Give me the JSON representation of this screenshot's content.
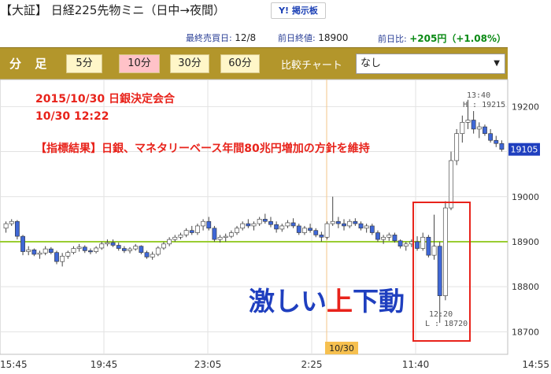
{
  "header": {
    "title": "【大証】 日経225先物ミニ（日中→夜間）",
    "board_button": "Y! 掲示板",
    "last_trade_label": "最終売買日:",
    "last_trade_value": "12/8",
    "prev_close_label": "前日終値:",
    "prev_close_value": "18900",
    "change_label": "前日比:",
    "change_value": "+205円（+1.08%）"
  },
  "toolbar": {
    "label": "分 足",
    "timeframes": [
      "5分",
      "10分",
      "30分",
      "60分"
    ],
    "active_timeframe": "10分",
    "compare_label": "比較チャート",
    "compare_value": "なし"
  },
  "chart_data": {
    "type": "candlestick",
    "x_ticks": [
      "15:45",
      "19:45",
      "23:05",
      "2:25",
      "11:40",
      "14:55"
    ],
    "y_ticks": [
      18700,
      18800,
      18900,
      19000,
      19100,
      19200
    ],
    "ylim": [
      18650,
      19260
    ],
    "reference_line": 18900,
    "date_marker": "10/30",
    "current_price": "19105",
    "colors": {
      "up": "#ffffff",
      "down": "#3f67d6",
      "reference": "#9acd32",
      "annotation": "#e8231b",
      "headline": "#1f3fbf"
    },
    "annotations": {
      "line1": "2015/10/30 日銀決定会合",
      "line2": "10/30 12:22",
      "line3": "【指標結果】日銀、マネタリーベース年間80兆円増加の方針を維持",
      "headline_pre": "激しい",
      "headline_red": "上",
      "headline_post": "下動",
      "high_time": "13:40",
      "high_label": "H : 19215",
      "low_time": "12:20",
      "low_label": "L : 18720"
    },
    "candles": [
      [
        18930,
        18945,
        18920,
        18940
      ],
      [
        18940,
        18950,
        18935,
        18945
      ],
      [
        18945,
        18948,
        18905,
        18912
      ],
      [
        18912,
        18915,
        18870,
        18878
      ],
      [
        18878,
        18890,
        18870,
        18882
      ],
      [
        18882,
        18885,
        18868,
        18872
      ],
      [
        18872,
        18880,
        18862,
        18875
      ],
      [
        18875,
        18890,
        18870,
        18884
      ],
      [
        18884,
        18888,
        18872,
        18876
      ],
      [
        18876,
        18880,
        18850,
        18856
      ],
      [
        18856,
        18875,
        18845,
        18868
      ],
      [
        18868,
        18880,
        18862,
        18876
      ],
      [
        18876,
        18890,
        18872,
        18885
      ],
      [
        18885,
        18895,
        18878,
        18888
      ],
      [
        18888,
        18892,
        18875,
        18880
      ],
      [
        18880,
        18885,
        18872,
        18878
      ],
      [
        18878,
        18890,
        18874,
        18886
      ],
      [
        18886,
        18900,
        18882,
        18895
      ],
      [
        18895,
        18905,
        18890,
        18898
      ],
      [
        18898,
        18905,
        18888,
        18892
      ],
      [
        18892,
        18898,
        18880,
        18885
      ],
      [
        18885,
        18890,
        18875,
        18880
      ],
      [
        18880,
        18888,
        18874,
        18884
      ],
      [
        18884,
        18895,
        18880,
        18890
      ],
      [
        18890,
        18892,
        18872,
        18876
      ],
      [
        18876,
        18880,
        18862,
        18866
      ],
      [
        18866,
        18878,
        18860,
        18872
      ],
      [
        18872,
        18890,
        18868,
        18886
      ],
      [
        18886,
        18900,
        18882,
        18895
      ],
      [
        18895,
        18910,
        18890,
        18905
      ],
      [
        18905,
        18915,
        18900,
        18910
      ],
      [
        18910,
        18920,
        18905,
        18915
      ],
      [
        18915,
        18930,
        18910,
        18925
      ],
      [
        18925,
        18935,
        18915,
        18920
      ],
      [
        18920,
        18940,
        18915,
        18935
      ],
      [
        18935,
        18950,
        18925,
        18945
      ],
      [
        18945,
        18955,
        18925,
        18930
      ],
      [
        18930,
        18935,
        18900,
        18905
      ],
      [
        18905,
        18915,
        18898,
        18910
      ],
      [
        18910,
        18918,
        18900,
        18912
      ],
      [
        18912,
        18925,
        18908,
        18920
      ],
      [
        18920,
        18935,
        18915,
        18930
      ],
      [
        18930,
        18945,
        18925,
        18940
      ],
      [
        18940,
        18950,
        18930,
        18935
      ],
      [
        18935,
        18945,
        18925,
        18940
      ],
      [
        18940,
        18955,
        18935,
        18950
      ],
      [
        18950,
        18962,
        18940,
        18945
      ],
      [
        18945,
        18955,
        18932,
        18938
      ],
      [
        18938,
        18945,
        18920,
        18928
      ],
      [
        18928,
        18940,
        18922,
        18935
      ],
      [
        18935,
        18948,
        18930,
        18942
      ],
      [
        18942,
        18952,
        18930,
        18935
      ],
      [
        18935,
        18940,
        18915,
        18920
      ],
      [
        18920,
        18935,
        18915,
        18930
      ],
      [
        18930,
        18940,
        18920,
        18925
      ],
      [
        18925,
        18930,
        18910,
        18915
      ],
      [
        18915,
        18922,
        18900,
        18910
      ],
      [
        18910,
        18945,
        18905,
        18940
      ],
      [
        18940,
        19000,
        18935,
        18945
      ],
      [
        18945,
        18955,
        18930,
        18940
      ],
      [
        18940,
        18950,
        18925,
        18935
      ],
      [
        18935,
        18950,
        18930,
        18945
      ],
      [
        18945,
        18952,
        18935,
        18940
      ],
      [
        18940,
        18945,
        18925,
        18930
      ],
      [
        18930,
        18940,
        18920,
        18935
      ],
      [
        18935,
        18940,
        18915,
        18920
      ],
      [
        18920,
        18925,
        18900,
        18905
      ],
      [
        18905,
        18915,
        18895,
        18910
      ],
      [
        18910,
        18920,
        18902,
        18915
      ],
      [
        18915,
        18920,
        18898,
        18902
      ],
      [
        18902,
        18905,
        18885,
        18890
      ],
      [
        18890,
        18900,
        18880,
        18895
      ],
      [
        18895,
        18905,
        18888,
        18900
      ],
      [
        18900,
        18912,
        18880,
        18885
      ],
      [
        18885,
        18920,
        18880,
        18910
      ],
      [
        18910,
        18915,
        18865,
        18870
      ],
      [
        18870,
        18960,
        18860,
        18890
      ],
      [
        18890,
        18900,
        18720,
        18780
      ],
      [
        18780,
        18990,
        18770,
        18975
      ],
      [
        18975,
        19100,
        18970,
        19080
      ],
      [
        19080,
        19150,
        19070,
        19140
      ],
      [
        19140,
        19180,
        19120,
        19165
      ],
      [
        19165,
        19215,
        19150,
        19170
      ],
      [
        19170,
        19190,
        19140,
        19150
      ],
      [
        19150,
        19165,
        19130,
        19155
      ],
      [
        19155,
        19160,
        19135,
        19140
      ],
      [
        19140,
        19150,
        19120,
        19125
      ],
      [
        19125,
        19135,
        19110,
        19118
      ],
      [
        19118,
        19125,
        19100,
        19105
      ]
    ]
  }
}
